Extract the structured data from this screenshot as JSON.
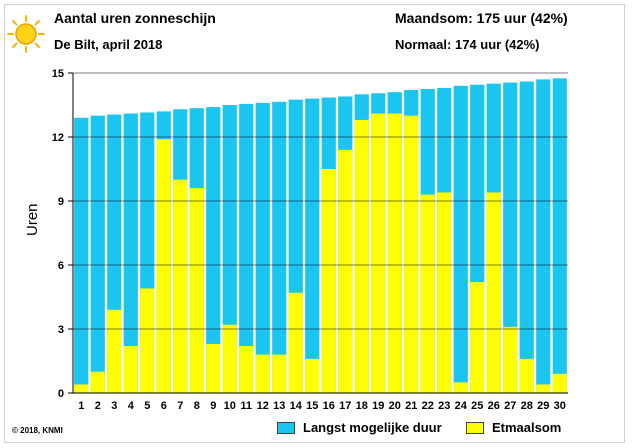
{
  "header": {
    "title": "Aantal uren zonneschijn",
    "subtitle": "De Bilt, april 2018",
    "maandsom": "Maandsom: 175 uur (42%)",
    "normaal": "Normaal: 174 uur (42%)"
  },
  "footer": {
    "copyright": "© 2018, KNMI"
  },
  "colors": {
    "max_duration": "#1cc4f0",
    "daily_sum": "#ffff00",
    "sun": "#f5b800"
  },
  "icons": {
    "logo": "sun-icon"
  },
  "chart_data": {
    "type": "bar",
    "ylabel": "Uren",
    "xlabel": "",
    "ylim": [
      0,
      15
    ],
    "yticks": [
      0,
      3,
      6,
      9,
      12,
      15
    ],
    "grid": true,
    "legend_position": "bottom-right",
    "categories": [
      "1",
      "2",
      "3",
      "4",
      "5",
      "6",
      "7",
      "8",
      "9",
      "10",
      "11",
      "12",
      "13",
      "14",
      "15",
      "16",
      "17",
      "18",
      "19",
      "20",
      "21",
      "22",
      "23",
      "24",
      "25",
      "26",
      "27",
      "28",
      "29",
      "30"
    ],
    "series": [
      {
        "name": "Langst mogelijke duur",
        "color": "#1cc4f0",
        "values": [
          12.9,
          13.0,
          13.05,
          13.1,
          13.15,
          13.2,
          13.3,
          13.35,
          13.4,
          13.5,
          13.55,
          13.6,
          13.65,
          13.75,
          13.8,
          13.85,
          13.9,
          14.0,
          14.05,
          14.1,
          14.2,
          14.25,
          14.3,
          14.4,
          14.45,
          14.5,
          14.55,
          14.6,
          14.7,
          14.75
        ]
      },
      {
        "name": "Etmaalsom",
        "color": "#ffff00",
        "values": [
          0.4,
          1.0,
          3.9,
          2.2,
          4.9,
          11.9,
          10.0,
          9.6,
          2.3,
          3.2,
          2.2,
          1.8,
          1.8,
          4.7,
          1.6,
          10.5,
          11.4,
          12.8,
          13.1,
          13.1,
          13.0,
          9.3,
          9.4,
          0.5,
          5.2,
          9.4,
          3.1,
          1.6,
          0.4,
          0.9
        ]
      }
    ]
  }
}
